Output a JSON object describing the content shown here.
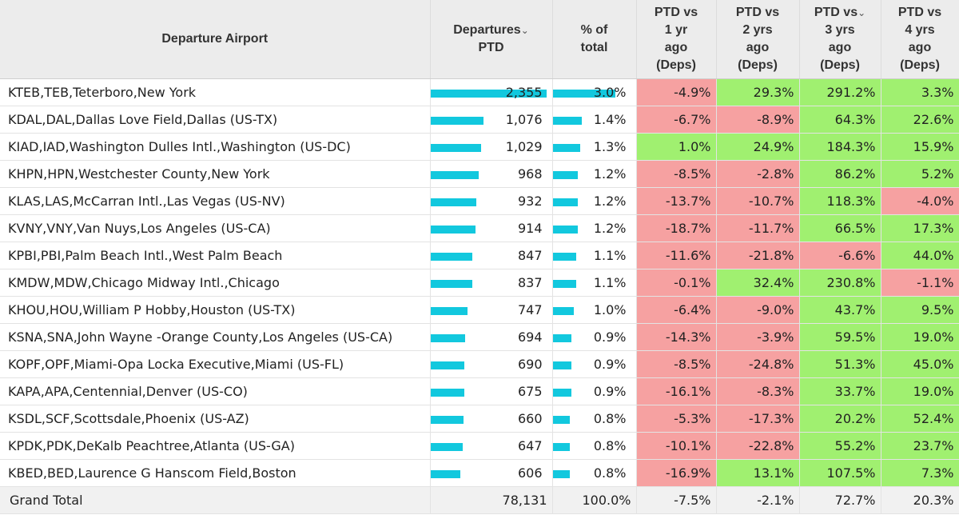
{
  "header": {
    "airport": "Departure Airport",
    "departures": [
      "Departures",
      "PTD"
    ],
    "pct_total": [
      "% of",
      "total"
    ],
    "vs1": [
      "PTD vs",
      "1 yr",
      "ago",
      "(Deps)"
    ],
    "vs2": [
      "PTD vs",
      "2 yrs",
      "ago",
      "(Deps)"
    ],
    "vs3": [
      "PTD vs",
      "3 yrs",
      "ago",
      "(Deps)"
    ],
    "vs4": [
      "PTD vs",
      "4 yrs",
      "ago",
      "(Deps)"
    ],
    "sort_glyph": "⌄"
  },
  "colors": {
    "bar": "#12c8de",
    "negative": "#f6a1a1",
    "positive": "#a0f070",
    "header_bg": "#ececec"
  },
  "rows": [
    {
      "airport": "KTEB,TEB,Teterboro,New York",
      "deps": "2,355",
      "deps_n": 2355,
      "pct": "3.0%",
      "pct_n": 3.0,
      "v1": "-4.9%",
      "v2": "29.3%",
      "v3": "291.2%",
      "v4": "3.3%"
    },
    {
      "airport": "KDAL,DAL,Dallas Love Field,Dallas (US-TX)",
      "deps": "1,076",
      "deps_n": 1076,
      "pct": "1.4%",
      "pct_n": 1.4,
      "v1": "-6.7%",
      "v2": "-8.9%",
      "v3": "64.3%",
      "v4": "22.6%"
    },
    {
      "airport": "KIAD,IAD,Washington Dulles Intl.,Washington (US-DC)",
      "deps": "1,029",
      "deps_n": 1029,
      "pct": "1.3%",
      "pct_n": 1.3,
      "v1": "1.0%",
      "v2": "24.9%",
      "v3": "184.3%",
      "v4": "15.9%"
    },
    {
      "airport": "KHPN,HPN,Westchester County,New York",
      "deps": "968",
      "deps_n": 968,
      "pct": "1.2%",
      "pct_n": 1.2,
      "v1": "-8.5%",
      "v2": "-2.8%",
      "v3": "86.2%",
      "v4": "5.2%"
    },
    {
      "airport": "KLAS,LAS,McCarran Intl.,Las Vegas (US-NV)",
      "deps": "932",
      "deps_n": 932,
      "pct": "1.2%",
      "pct_n": 1.2,
      "v1": "-13.7%",
      "v2": "-10.7%",
      "v3": "118.3%",
      "v4": "-4.0%"
    },
    {
      "airport": "KVNY,VNY,Van Nuys,Los Angeles (US-CA)",
      "deps": "914",
      "deps_n": 914,
      "pct": "1.2%",
      "pct_n": 1.2,
      "v1": "-18.7%",
      "v2": "-11.7%",
      "v3": "66.5%",
      "v4": "17.3%"
    },
    {
      "airport": "KPBI,PBI,Palm Beach Intl.,West Palm Beach",
      "deps": "847",
      "deps_n": 847,
      "pct": "1.1%",
      "pct_n": 1.1,
      "v1": "-11.6%",
      "v2": "-21.8%",
      "v3": "-6.6%",
      "v4": "44.0%"
    },
    {
      "airport": "KMDW,MDW,Chicago Midway Intl.,Chicago",
      "deps": "837",
      "deps_n": 837,
      "pct": "1.1%",
      "pct_n": 1.1,
      "v1": "-0.1%",
      "v2": "32.4%",
      "v3": "230.8%",
      "v4": "-1.1%"
    },
    {
      "airport": "KHOU,HOU,William P Hobby,Houston (US-TX)",
      "deps": "747",
      "deps_n": 747,
      "pct": "1.0%",
      "pct_n": 1.0,
      "v1": "-6.4%",
      "v2": "-9.0%",
      "v3": "43.7%",
      "v4": "9.5%"
    },
    {
      "airport": "KSNA,SNA,John Wayne -Orange County,Los Angeles (US-CA)",
      "deps": "694",
      "deps_n": 694,
      "pct": "0.9%",
      "pct_n": 0.9,
      "v1": "-14.3%",
      "v2": "-3.9%",
      "v3": "59.5%",
      "v4": "19.0%"
    },
    {
      "airport": "KOPF,OPF,Miami-Opa Locka Executive,Miami (US-FL)",
      "deps": "690",
      "deps_n": 690,
      "pct": "0.9%",
      "pct_n": 0.9,
      "v1": "-8.5%",
      "v2": "-24.8%",
      "v3": "51.3%",
      "v4": "45.0%"
    },
    {
      "airport": "KAPA,APA,Centennial,Denver (US-CO)",
      "deps": "675",
      "deps_n": 675,
      "pct": "0.9%",
      "pct_n": 0.9,
      "v1": "-16.1%",
      "v2": "-8.3%",
      "v3": "33.7%",
      "v4": "19.0%"
    },
    {
      "airport": "KSDL,SCF,Scottsdale,Phoenix (US-AZ)",
      "deps": "660",
      "deps_n": 660,
      "pct": "0.8%",
      "pct_n": 0.8,
      "v1": "-5.3%",
      "v2": "-17.3%",
      "v3": "20.2%",
      "v4": "52.4%"
    },
    {
      "airport": "KPDK,PDK,DeKalb Peachtree,Atlanta (US-GA)",
      "deps": "647",
      "deps_n": 647,
      "pct": "0.8%",
      "pct_n": 0.8,
      "v1": "-10.1%",
      "v2": "-22.8%",
      "v3": "55.2%",
      "v4": "23.7%"
    },
    {
      "airport": "KBED,BED,Laurence G Hanscom Field,Boston",
      "deps": "606",
      "deps_n": 606,
      "pct": "0.8%",
      "pct_n": 0.8,
      "v1": "-16.9%",
      "v2": "13.1%",
      "v3": "107.5%",
      "v4": "7.3%"
    }
  ],
  "total": {
    "airport": "Grand Total",
    "deps": "78,131",
    "pct": "100.0%",
    "v1": "-7.5%",
    "v2": "-2.1%",
    "v3": "72.7%",
    "v4": "20.3%"
  }
}
